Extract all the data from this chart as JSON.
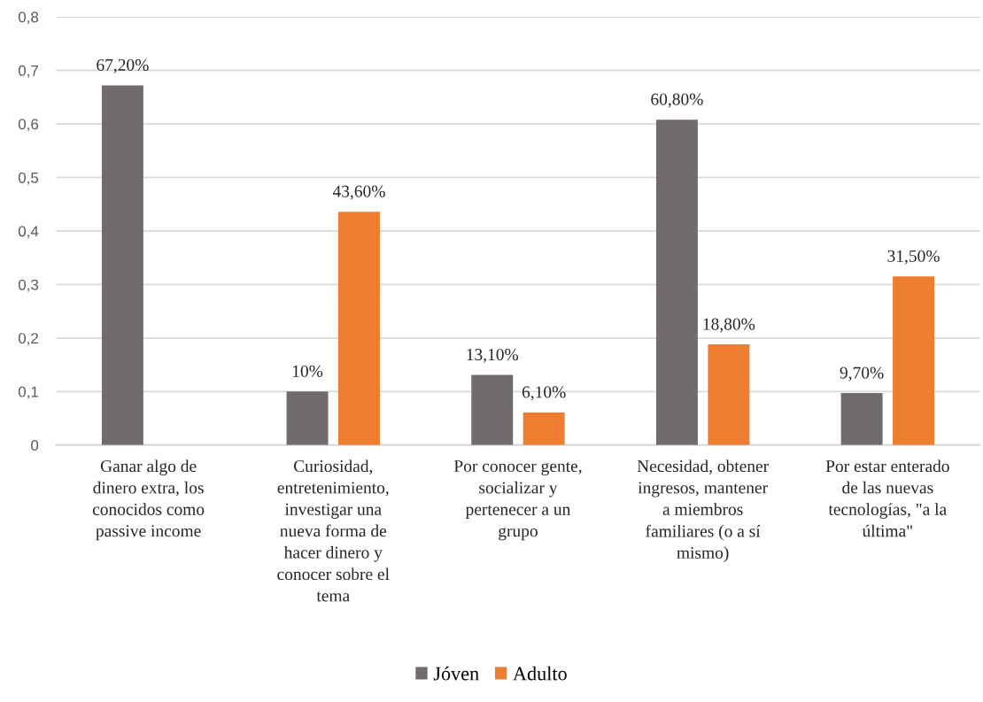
{
  "chart_data": {
    "type": "bar",
    "categories": [
      "Ganar algo de\ndinero extra, los\nconocidos como\npassive income",
      "Curiosidad,\nentretenimiento,\ninvestigar una\nnueva forma de\nhacer dinero y\nconocer sobre el\ntema",
      "Por conocer gente,\nsocializar y\npertenecer a un\ngrupo",
      "Necesidad, obtener\ningresos, mantener\na miembros\nfamiliares (o a sí\nmismo)",
      "Por estar enterado\nde las nuevas\ntecnologías, \"a la\núltima\""
    ],
    "series": [
      {
        "name": "Jóven",
        "color": "#716c6b",
        "values": [
          0.672,
          0.1,
          0.131,
          0.608,
          0.097
        ],
        "value_labels": [
          "67,20%",
          "10%",
          "13,10%",
          "60,80%",
          "9,70%"
        ]
      },
      {
        "name": "Adulto",
        "color": "#ed7d31",
        "values": [
          null,
          0.436,
          0.061,
          0.188,
          0.315
        ],
        "value_labels": [
          null,
          "43,60%",
          "6,10%",
          "18,80%",
          "31,50%"
        ]
      }
    ],
    "ylim": [
      0,
      0.8
    ],
    "yticks": [
      0,
      {
        "value": 0.1,
        "label": "0,1"
      },
      {
        "value": 0.2,
        "label": "0,2"
      },
      {
        "value": 0.3,
        "label": "0,3"
      },
      {
        "value": 0.4,
        "label": "0,4"
      },
      {
        "value": 0.5,
        "label": "0,5"
      },
      {
        "value": 0.6,
        "label": "0,6"
      },
      {
        "value": 0.7,
        "label": "0,7"
      },
      {
        "value": 0.8,
        "label": "0,8"
      }
    ],
    "grid": "y",
    "legend": "bottom"
  }
}
